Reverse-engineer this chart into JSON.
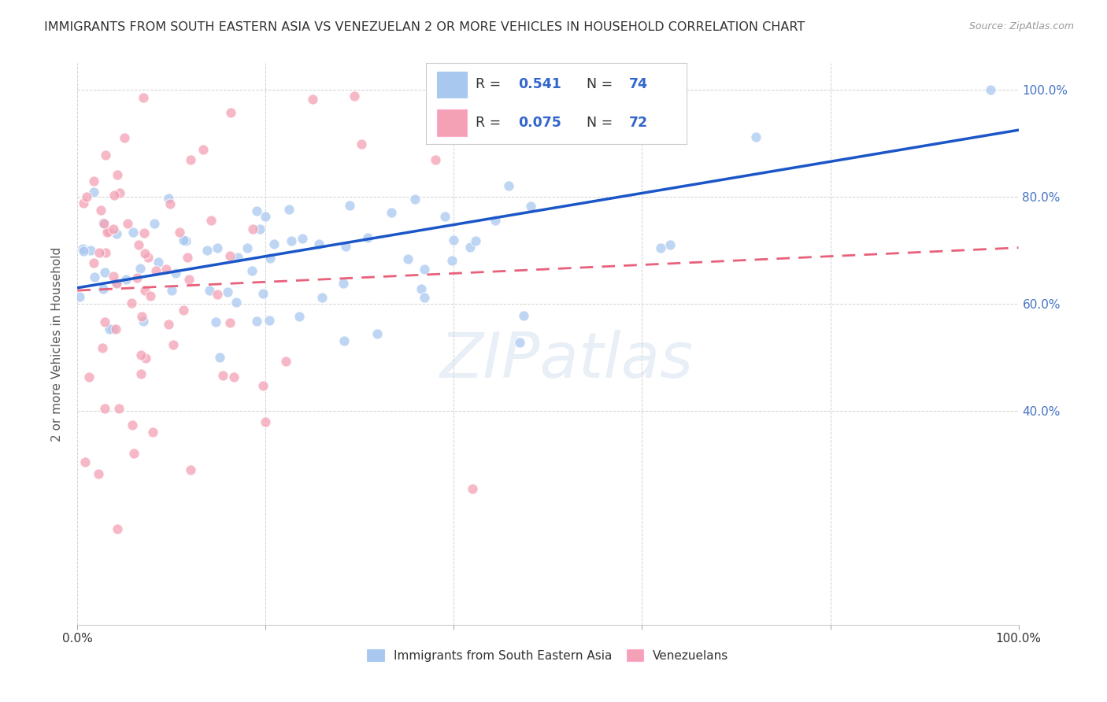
{
  "title": "IMMIGRANTS FROM SOUTH EASTERN ASIA VS VENEZUELAN 2 OR MORE VEHICLES IN HOUSEHOLD CORRELATION CHART",
  "source": "Source: ZipAtlas.com",
  "ylabel": "2 or more Vehicles in Household",
  "blue_R": 0.541,
  "blue_N": 74,
  "pink_R": 0.075,
  "pink_N": 72,
  "blue_color": "#A8C8F0",
  "pink_color": "#F4A0B5",
  "blue_line_color": "#1A56C8",
  "pink_line_color": "#E8607A",
  "legend_label_blue": "Immigrants from South Eastern Asia",
  "legend_label_pink": "Venezuelans",
  "watermark": "ZIPatlas",
  "background_color": "#FFFFFF",
  "grid_color": "#CCCCCC",
  "ytick_color": "#4472C4",
  "xtick_color": "#333333",
  "ymin": 0.0,
  "ymax": 1.05,
  "xmin": 0.0,
  "xmax": 1.0,
  "yticks": [
    0.4,
    0.6,
    0.8,
    1.0
  ],
  "ytick_labels": [
    "40.0%",
    "60.0%",
    "80.0%",
    "100.0%"
  ],
  "xtick_labels_show": [
    "0.0%",
    "100.0%"
  ],
  "blue_line_x": [
    0.0,
    1.0
  ],
  "blue_line_y": [
    0.63,
    0.925
  ],
  "pink_line_x": [
    0.0,
    1.0
  ],
  "pink_line_y": [
    0.625,
    0.705
  ]
}
